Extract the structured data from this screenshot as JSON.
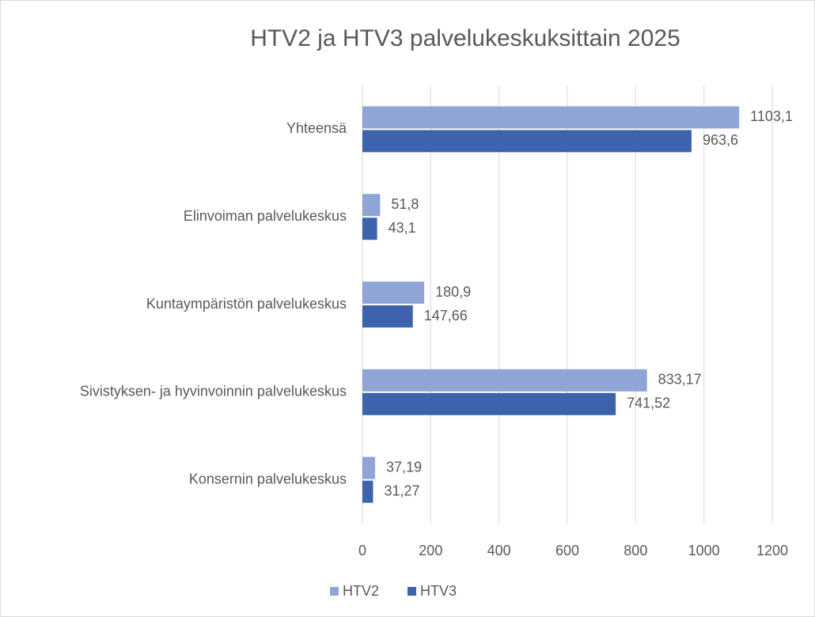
{
  "chart_data": {
    "type": "hbar",
    "title": "HTV2 ja HTV3 palvelukeskuksittain 2025",
    "categories": [
      "Yhteensä",
      "Elinvoiman palvelukeskus",
      "Kuntaympäristön palvelukeskus",
      "Sivistyksen- ja hyvinvoinnin palvelukeskus",
      "Konsernin palvelukeskus"
    ],
    "series": [
      {
        "name": "HTV2",
        "color": "#8fa5d6",
        "values": [
          1103.1,
          51.8,
          180.9,
          833.17,
          37.19
        ],
        "value_labels": [
          "1103,1",
          "51,8",
          "180,9",
          "833,17",
          "37,19"
        ]
      },
      {
        "name": "HTV3",
        "color": "#3d63ad",
        "values": [
          963.6,
          43.1,
          147.66,
          741.52,
          31.27
        ],
        "value_labels": [
          "963,6",
          "43,1",
          "147,66",
          "741,52",
          "31,27"
        ]
      }
    ],
    "xlim": [
      0,
      1200
    ],
    "xticks": [
      0,
      200,
      400,
      600,
      800,
      1000,
      1200
    ],
    "grid": true,
    "legend": "bottom"
  }
}
